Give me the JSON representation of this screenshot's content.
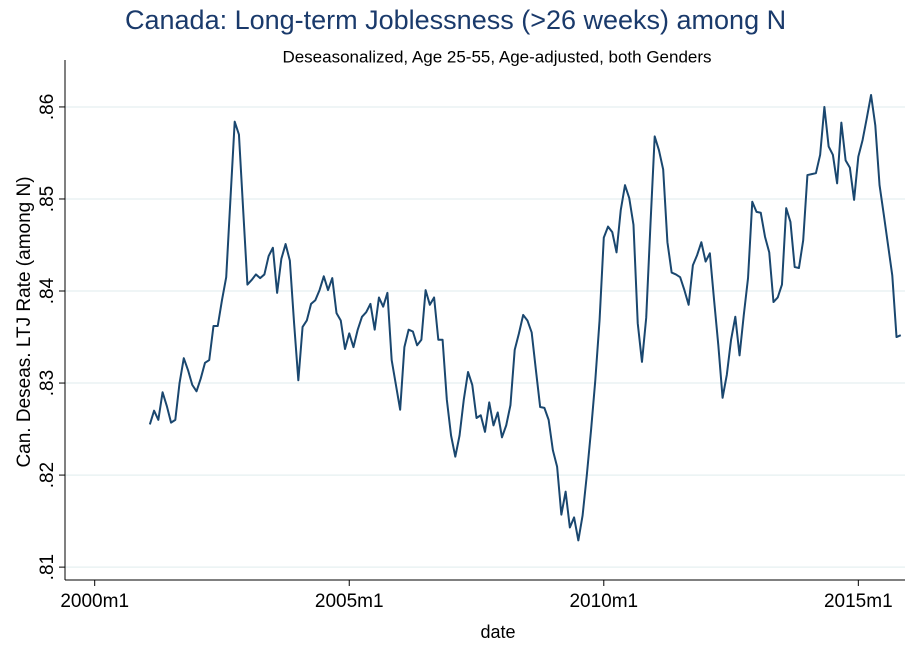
{
  "chart_data": {
    "type": "line",
    "title": "Canada: Long-term Joblessness (>26 weeks) among N",
    "subtitle": "Deseasonalized, Age 25-55, Age-adjusted, both Genders",
    "x_label": "date",
    "y_label": "Can. Deseas. LTJ Rate (among N)",
    "x": [
      "2001m2",
      "2001m3",
      "2001m4",
      "2001m5",
      "2001m6",
      "2001m7",
      "2001m8",
      "2001m9",
      "2001m10",
      "2001m11",
      "2001m12",
      "2002m1",
      "2002m2",
      "2002m3",
      "2002m4",
      "2002m5",
      "2002m6",
      "2002m7",
      "2002m8",
      "2002m9",
      "2002m10",
      "2002m11",
      "2002m12",
      "2003m1",
      "2003m2",
      "2003m3",
      "2003m4",
      "2003m5",
      "2003m6",
      "2003m7",
      "2003m8",
      "2003m9",
      "2003m10",
      "2003m11",
      "2003m12",
      "2004m1",
      "2004m2",
      "2004m3",
      "2004m4",
      "2004m5",
      "2004m6",
      "2004m7",
      "2004m8",
      "2004m9",
      "2004m10",
      "2004m11",
      "2004m12",
      "2005m1",
      "2005m2",
      "2005m3",
      "2005m4",
      "2005m5",
      "2005m6",
      "2005m7",
      "2005m8",
      "2005m9",
      "2005m10",
      "2005m11",
      "2005m12",
      "2006m1",
      "2006m2",
      "2006m3",
      "2006m4",
      "2006m5",
      "2006m6",
      "2006m7",
      "2006m8",
      "2006m9",
      "2006m10",
      "2006m11",
      "2006m12",
      "2007m1",
      "2007m2",
      "2007m3",
      "2007m4",
      "2007m5",
      "2007m6",
      "2007m7",
      "2007m8",
      "2007m9",
      "2007m10",
      "2007m11",
      "2007m12",
      "2008m1",
      "2008m2",
      "2008m3",
      "2008m4",
      "2008m5",
      "2008m6",
      "2008m7",
      "2008m8",
      "2008m9",
      "2008m10",
      "2008m11",
      "2008m12",
      "2009m1",
      "2009m2",
      "2009m3",
      "2009m4",
      "2009m5",
      "2009m6",
      "2009m7",
      "2009m8",
      "2009m9",
      "2009m10",
      "2009m11",
      "2009m12",
      "2010m1",
      "2010m2",
      "2010m3",
      "2010m4",
      "2010m5",
      "2010m6",
      "2010m7",
      "2010m8",
      "2010m9",
      "2010m10",
      "2010m11",
      "2010m12",
      "2011m1",
      "2011m2",
      "2011m3",
      "2011m4",
      "2011m5",
      "2011m6",
      "2011m7",
      "2011m8",
      "2011m9",
      "2011m10",
      "2011m11",
      "2011m12",
      "2012m1",
      "2012m2",
      "2012m3",
      "2012m4",
      "2012m5",
      "2012m6",
      "2012m7",
      "2012m8",
      "2012m9",
      "2012m10",
      "2012m11",
      "2012m12",
      "2013m1",
      "2013m2",
      "2013m3",
      "2013m4",
      "2013m5",
      "2013m6",
      "2013m7",
      "2013m8",
      "2013m9",
      "2013m10",
      "2013m11",
      "2013m12",
      "2014m1",
      "2014m2",
      "2014m3",
      "2014m4",
      "2014m5",
      "2014m6",
      "2014m7",
      "2014m8",
      "2014m9",
      "2014m10",
      "2014m11",
      "2014m12",
      "2015m1",
      "2015m2",
      "2015m3",
      "2015m4",
      "2015m5",
      "2015m6",
      "2015m7",
      "2015m8",
      "2015m9",
      "2015m10",
      "2015m11"
    ],
    "values": [
      0.8255,
      0.827,
      0.826,
      0.829,
      0.8275,
      0.8257,
      0.826,
      0.83,
      0.8327,
      0.8314,
      0.8298,
      0.8291,
      0.8305,
      0.8322,
      0.8325,
      0.8362,
      0.8362,
      0.839,
      0.8415,
      0.85,
      0.8584,
      0.857,
      0.8488,
      0.8407,
      0.8412,
      0.8418,
      0.8414,
      0.8418,
      0.8438,
      0.8447,
      0.8398,
      0.8435,
      0.8451,
      0.8433,
      0.8365,
      0.8303,
      0.8361,
      0.8368,
      0.8386,
      0.839,
      0.8401,
      0.8416,
      0.8401,
      0.8414,
      0.8376,
      0.8368,
      0.8337,
      0.8354,
      0.8339,
      0.8358,
      0.8372,
      0.8377,
      0.8386,
      0.8358,
      0.8393,
      0.8383,
      0.8398,
      0.8325,
      0.8298,
      0.8271,
      0.8339,
      0.8358,
      0.8356,
      0.8341,
      0.8347,
      0.8401,
      0.8385,
      0.8393,
      0.8347,
      0.8347,
      0.8282,
      0.8243,
      0.822,
      0.8243,
      0.8282,
      0.8312,
      0.8298,
      0.8262,
      0.8265,
      0.8247,
      0.8279,
      0.8254,
      0.8268,
      0.8241,
      0.8254,
      0.8276,
      0.8336,
      0.8354,
      0.8374,
      0.8368,
      0.8355,
      0.8314,
      0.8274,
      0.8273,
      0.826,
      0.8227,
      0.8209,
      0.8157,
      0.8182,
      0.8143,
      0.8154,
      0.8129,
      0.8156,
      0.82,
      0.8249,
      0.8303,
      0.8368,
      0.8458,
      0.847,
      0.8464,
      0.8442,
      0.8488,
      0.8515,
      0.8501,
      0.8472,
      0.8365,
      0.8323,
      0.8371,
      0.8472,
      0.8568,
      0.8553,
      0.8532,
      0.8453,
      0.842,
      0.8418,
      0.8415,
      0.8401,
      0.8385,
      0.8428,
      0.8439,
      0.8453,
      0.8432,
      0.8441,
      0.839,
      0.8341,
      0.8284,
      0.8309,
      0.8347,
      0.8372,
      0.833,
      0.8374,
      0.8414,
      0.8497,
      0.8486,
      0.8485,
      0.8459,
      0.8442,
      0.8388,
      0.8393,
      0.8407,
      0.849,
      0.8475,
      0.8426,
      0.8425,
      0.8455,
      0.8526,
      0.8527,
      0.8528,
      0.8548,
      0.86,
      0.8557,
      0.8548,
      0.8517,
      0.8583,
      0.8542,
      0.8534,
      0.8499,
      0.8546,
      0.8564,
      0.8588,
      0.8613,
      0.858,
      0.8515,
      0.8483,
      0.845,
      0.8417,
      0.835,
      0.8352
    ],
    "color": "#1a476f",
    "xlim": [
      "1999m6",
      "2015m12"
    ],
    "xticks": [
      "2000m1",
      "2005m1",
      "2010m1",
      "2015m1"
    ],
    "ylim": [
      0.8086,
      0.8651
    ],
    "yticks": [
      {
        "value": 0.81,
        "label": ".81"
      },
      {
        "value": 0.82,
        "label": ".82"
      },
      {
        "value": 0.83,
        "label": ".83"
      },
      {
        "value": 0.84,
        "label": ".84"
      },
      {
        "value": 0.85,
        "label": ".85"
      },
      {
        "value": 0.86,
        "label": ".86"
      }
    ],
    "grid": true
  }
}
